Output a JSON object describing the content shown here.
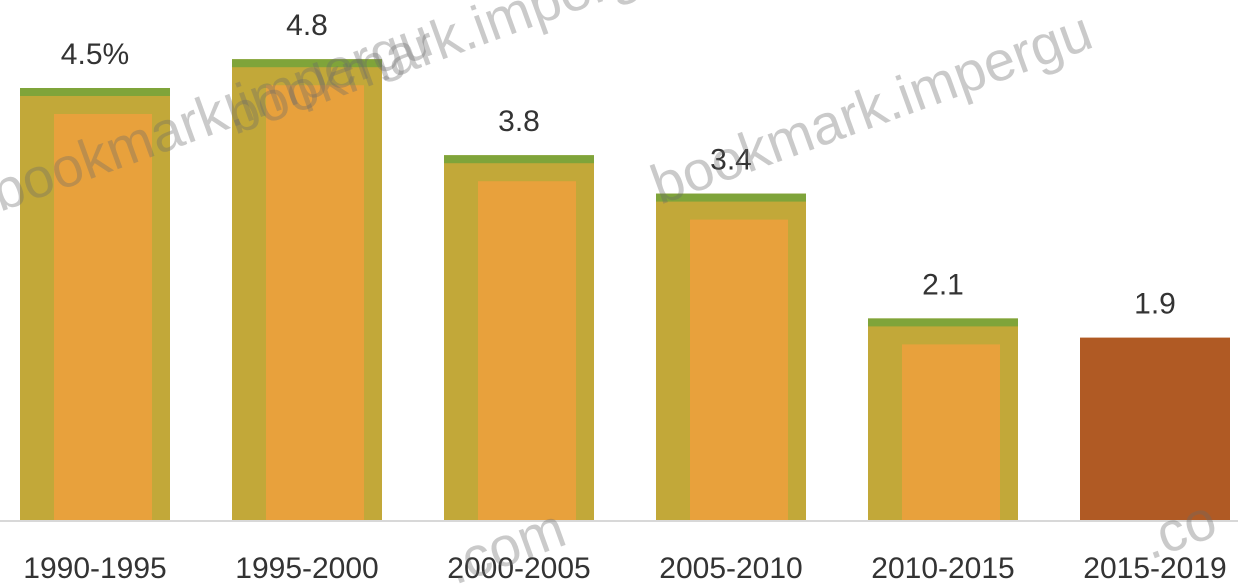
{
  "chart_data": {
    "type": "bar",
    "categories": [
      "1990-1995",
      "1995-2000",
      "2000-2005",
      "2005-2010",
      "2010-2015",
      "2015-2019"
    ],
    "values": [
      4.5,
      4.8,
      3.8,
      3.4,
      2.1,
      1.9
    ],
    "data_labels": [
      "4.5%",
      "4.8",
      "3.8",
      "3.4",
      "2.1",
      "1.9"
    ],
    "title": "",
    "xlabel": "",
    "ylabel": "",
    "ylim": [
      0,
      5.0
    ],
    "grid": false,
    "legend": "none",
    "colors": {
      "bar_outer": "#c2a839",
      "bar_inner": "#e8a13c",
      "bar_last": "#b05a24",
      "bar_top_edge": "#7fa43a",
      "baseline": "#d8d8d8",
      "text": "#333333"
    }
  },
  "watermarks": [
    "bookmark.impergu",
    "bookmark.impergu",
    "bookmark.impergu",
    ".com",
    ".co"
  ]
}
